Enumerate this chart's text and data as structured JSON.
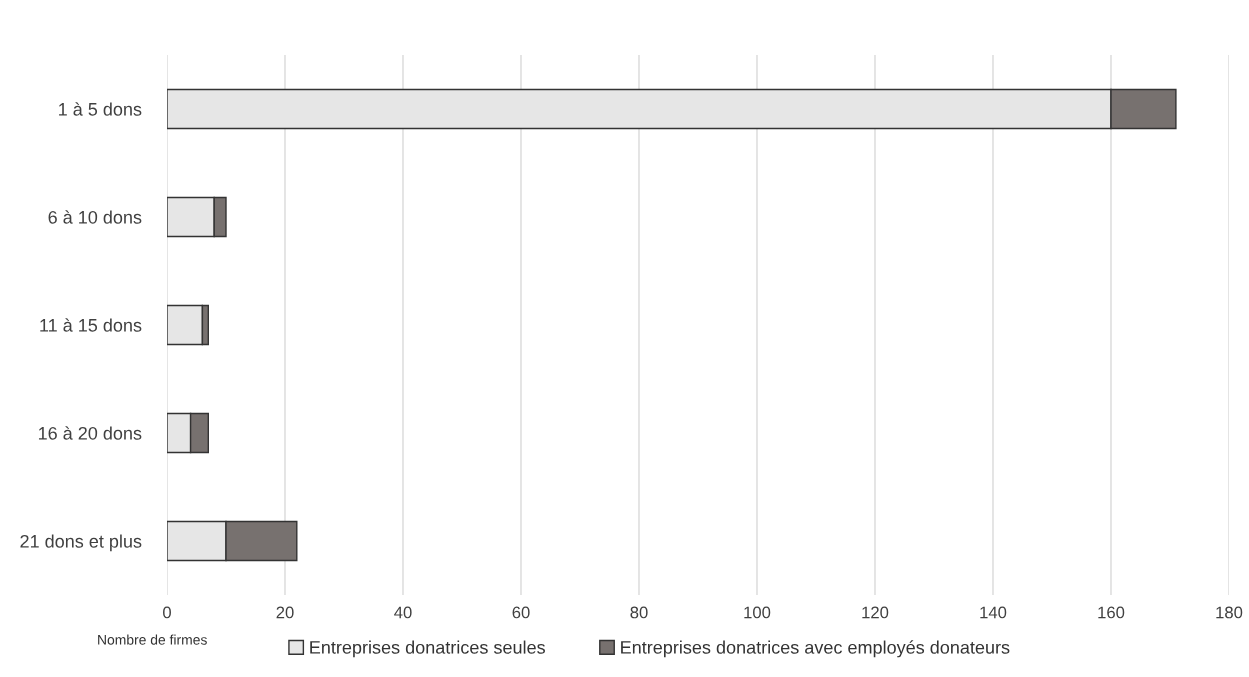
{
  "chart_data": {
    "type": "bar",
    "orientation": "horizontal",
    "stacked": true,
    "categories": [
      "1 à 5 dons",
      "6 à 10 dons",
      "11 à 15 dons",
      "16 à 20 dons",
      "21 dons et plus"
    ],
    "series": [
      {
        "name": "Entreprises donatrices seules",
        "color": "#e6e6e6",
        "values": [
          160,
          8,
          6,
          4,
          10
        ]
      },
      {
        "name": "Entreprises donatrices avec employés donateurs",
        "color": "#77716f",
        "values": [
          11,
          2,
          1,
          3,
          12
        ]
      }
    ],
    "xlim": [
      0,
      180
    ],
    "xticks": [
      0,
      20,
      40,
      60,
      80,
      100,
      120,
      140,
      160,
      180
    ],
    "xlabel": "Nombre de firmes",
    "grid": "x",
    "legend": "bottom"
  }
}
